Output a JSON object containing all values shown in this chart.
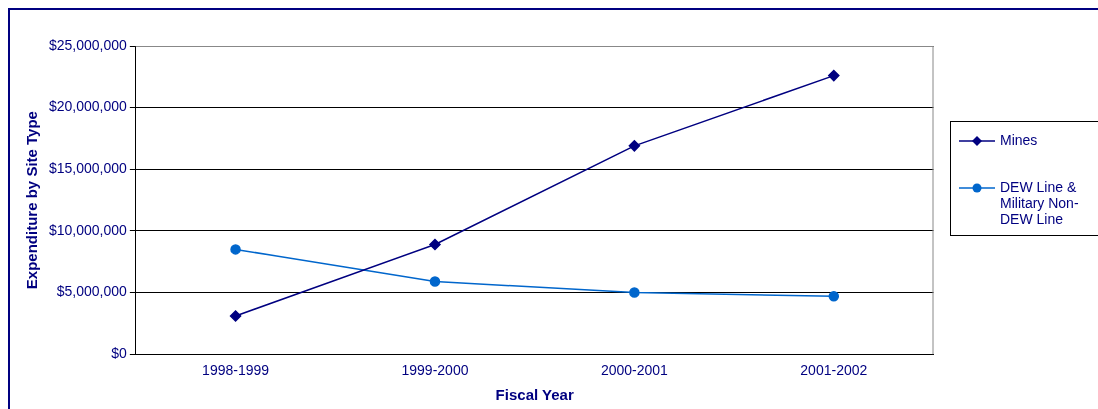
{
  "chart_data": {
    "type": "line",
    "xlabel": "Fiscal Year",
    "ylabel": "Expenditure by Site Type",
    "categories": [
      "1998-1999",
      "1999-2000",
      "2000-2001",
      "2001-2002"
    ],
    "series": [
      {
        "name": "Mines",
        "color": "#000080",
        "marker": "diamond",
        "values": [
          3100000,
          8900000,
          16900000,
          22600000
        ]
      },
      {
        "name": "DEW Line & Military Non-DEW Line",
        "color": "#0066cc",
        "marker": "circle",
        "values": [
          8500000,
          5900000,
          5000000,
          4700000
        ]
      }
    ],
    "ylim": [
      0,
      25000000
    ],
    "yticks": [
      {
        "value": 0,
        "label": "$0"
      },
      {
        "value": 5000000,
        "label": "$5,000,000"
      },
      {
        "value": 10000000,
        "label": "$10,000,000"
      },
      {
        "value": 15000000,
        "label": "$15,000,000"
      },
      {
        "value": 20000000,
        "label": "$20,000,000"
      },
      {
        "value": 25000000,
        "label": "$25,000,000"
      }
    ],
    "grid": "y",
    "legend": "right",
    "line_style": "solid"
  }
}
